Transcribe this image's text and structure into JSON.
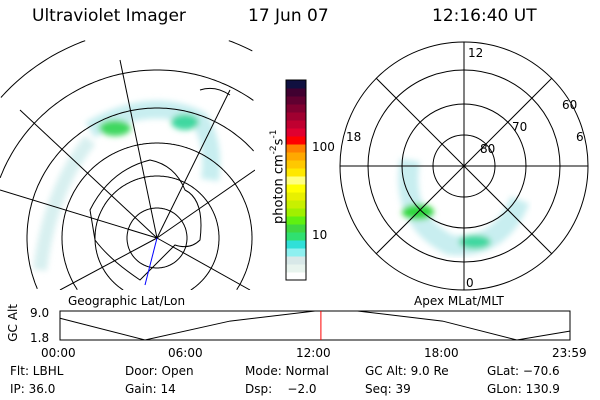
{
  "header": {
    "instrument": "Ultraviolet Imager",
    "date": "17 Jun 07",
    "time": "12:16:40 UT"
  },
  "left_map": {
    "label": "Geographic Lat/Lon"
  },
  "right_map": {
    "label": "Apex MLat/MLT",
    "mlt_labels": [
      "12",
      "18",
      "6",
      "0"
    ],
    "lat_labels": [
      "60",
      "70",
      "80"
    ]
  },
  "colorbar": {
    "unit": "photon cm",
    "exp1": "-2",
    "s": "s",
    "exp2": "-1",
    "ticks": [
      "100",
      "10"
    ],
    "colors": [
      "#ffffff",
      "#e8f4ee",
      "#d8e8e8",
      "#8ef0f0",
      "#30e0d8",
      "#30e070",
      "#40d840",
      "#60f010",
      "#a0f000",
      "#c8f000",
      "#e8f000",
      "#ffff00",
      "#ffff80",
      "#ffe800",
      "#ffc800",
      "#ffa800",
      "#ff8000",
      "#ff0000",
      "#e00030",
      "#c00030",
      "#a00030",
      "#800030",
      "#600030",
      "#400030",
      "#101040"
    ]
  },
  "chart_data": {
    "type": "line",
    "ylabel": "GC Alt",
    "yticks": [
      "9.0",
      "1.8"
    ],
    "ylim": [
      1.8,
      9.0
    ],
    "xticks": [
      "00:00",
      "06:00",
      "12:00",
      "18:00",
      "23:59"
    ],
    "x": [
      0,
      4,
      8,
      12,
      14,
      18,
      21.5,
      23.99
    ],
    "values": [
      7.2,
      1.8,
      6.5,
      9.0,
      9.0,
      6.5,
      1.8,
      4.0
    ],
    "current_time": "12:16:40",
    "marker_color": "#ff0000"
  },
  "footer": {
    "row1": [
      "Flt: LBHL",
      "Door: Open",
      "Mode: Normal",
      "GC Alt: 9.0 Re",
      "GLat: −70.6"
    ],
    "row2": [
      "IP: 36.0",
      "Gain: 14",
      "Dsp:    −2.0",
      "Seq: 39",
      "GLon: 130.9"
    ]
  }
}
